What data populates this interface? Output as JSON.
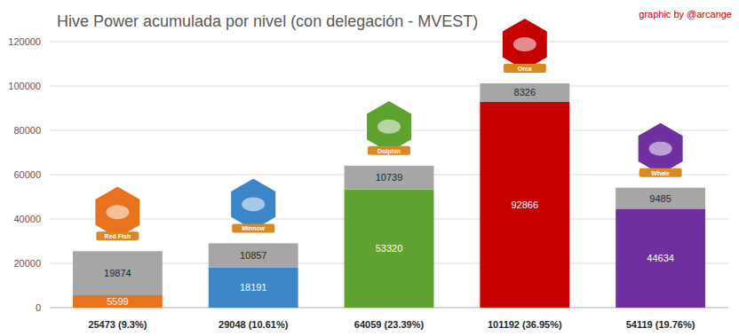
{
  "chart_data": {
    "type": "bar",
    "title": "Hive Power acumulada por nivel (con delegación - MVEST)",
    "annotations": [
      "graphic by @arcange"
    ],
    "badges": [
      "Red Fish",
      "Minnow",
      "Dolphin",
      "Orca",
      "Whale"
    ],
    "categories": [
      "25473 (9.3%)",
      "29048 (10.61%)",
      "64059 (23.39%)",
      "101192 (36.95%)",
      "54119 (19.76%)"
    ],
    "series": [
      {
        "colors": [
          "#e8731c",
          "#3d85c9",
          "#5ea22f",
          "#c40000",
          "#7030a0"
        ],
        "values": [
          5599,
          18191,
          53320,
          92866,
          44634
        ]
      },
      {
        "color": "#a6a6a6",
        "values": [
          19874,
          10857,
          10739,
          8326,
          9485
        ]
      }
    ],
    "stacked": true,
    "data_labels": true,
    "grid": true,
    "ylim": [
      0,
      120000
    ],
    "yticks": [
      0,
      20000,
      40000,
      60000,
      80000,
      100000,
      120000
    ]
  }
}
